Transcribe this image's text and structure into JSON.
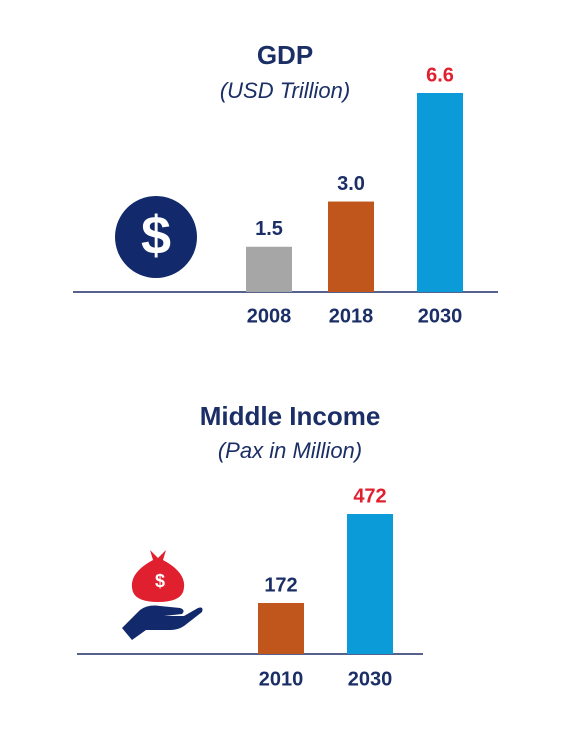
{
  "chart_data": [
    {
      "type": "bar",
      "title": "GDP",
      "subtitle": "(USD Trillion)",
      "categories": [
        "2008",
        "2018",
        "2030"
      ],
      "values": [
        1.5,
        3.0,
        6.6
      ],
      "value_labels": [
        "1.5",
        "3.0",
        "6.6"
      ],
      "colors": [
        "#a6a6a6",
        "#c0561c",
        "#0b9bd8"
      ],
      "label_colors": [
        "#1b2f66",
        "#1b2f66",
        "#e0202f"
      ]
    },
    {
      "type": "bar",
      "title": "Middle Income",
      "subtitle": "(Pax in Million)",
      "categories": [
        "2010",
        "2030"
      ],
      "values": [
        172,
        472
      ],
      "colors": [
        "#c0561c",
        "#0b9bd8"
      ],
      "label_colors": [
        "#1b2f66",
        "#e0202f"
      ]
    }
  ]
}
